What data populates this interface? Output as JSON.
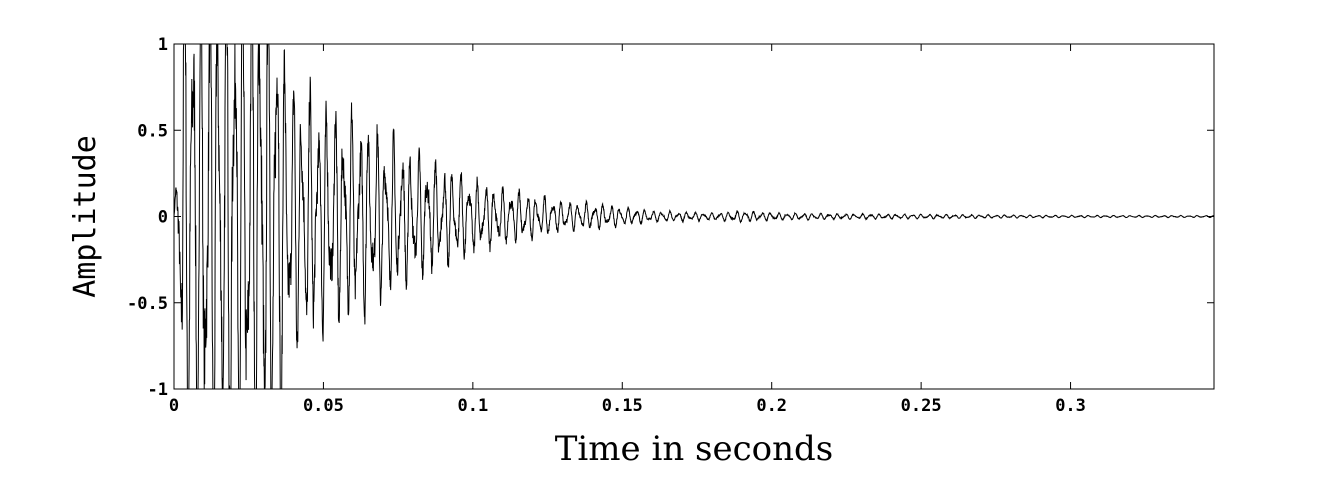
{
  "chart_data": {
    "type": "line",
    "title": "",
    "xlabel": "Time in seconds",
    "ylabel": "Amplitude",
    "xlim": [
      0,
      0.348
    ],
    "ylim": [
      -1,
      1
    ],
    "grid": false,
    "legend": "none",
    "x_ticks": [
      0,
      0.05,
      0.1,
      0.15,
      0.2,
      0.25,
      0.3
    ],
    "x_tick_labels": [
      "0",
      "0.05",
      "0.1",
      "0.15",
      "0.2",
      "0.25",
      "0.3"
    ],
    "y_ticks": [
      1,
      0.5,
      0,
      -0.5,
      -1
    ],
    "y_tick_labels": [
      "1",
      "0.5",
      "0",
      "-0.5",
      "-1"
    ],
    "series": [
      {
        "line_color": "#000000",
        "envelope": {
          "t": [
            0,
            0.003,
            0.01,
            0.02,
            0.03,
            0.035,
            0.04,
            0.05,
            0.06,
            0.07,
            0.08,
            0.09,
            0.1,
            0.11,
            0.12,
            0.13,
            0.14,
            0.15,
            0.16,
            0.17,
            0.18,
            0.19,
            0.2,
            0.22,
            0.25,
            0.28,
            0.3,
            0.348
          ],
          "amplitude": [
            0,
            1,
            1,
            1,
            1,
            0.95,
            0.75,
            0.6,
            0.55,
            0.45,
            0.35,
            0.28,
            0.2,
            0.15,
            0.12,
            0.08,
            0.07,
            0.05,
            0.03,
            0.025,
            0.02,
            0.03,
            0.02,
            0.015,
            0.012,
            0.008,
            0.006,
            0.005
          ]
        },
        "oscillation_hz": 170
      }
    ]
  }
}
